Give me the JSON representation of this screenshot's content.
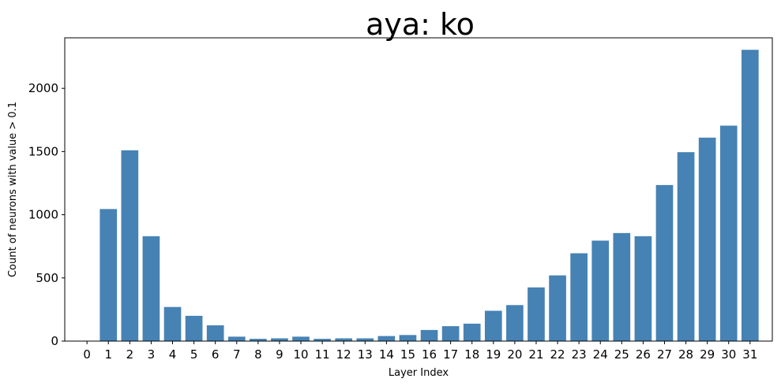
{
  "chart_data": {
    "type": "bar",
    "title": "aya: ko",
    "xlabel": "Layer Index",
    "ylabel": "Count of neurons with value > 0.1",
    "categories": [
      "0",
      "1",
      "2",
      "3",
      "4",
      "5",
      "6",
      "7",
      "8",
      "9",
      "10",
      "11",
      "12",
      "13",
      "14",
      "15",
      "16",
      "17",
      "18",
      "19",
      "20",
      "21",
      "22",
      "23",
      "24",
      "25",
      "26",
      "27",
      "28",
      "29",
      "30",
      "31"
    ],
    "values": [
      0,
      1045,
      1510,
      830,
      270,
      200,
      125,
      35,
      18,
      22,
      35,
      18,
      22,
      22,
      40,
      48,
      88,
      118,
      138,
      240,
      285,
      425,
      520,
      695,
      795,
      855,
      830,
      1235,
      1495,
      1610,
      1705,
      2305
    ],
    "yticks": [
      0,
      500,
      1000,
      1500,
      2000
    ],
    "ylim": [
      0,
      2400
    ],
    "color": "#4682b4"
  }
}
